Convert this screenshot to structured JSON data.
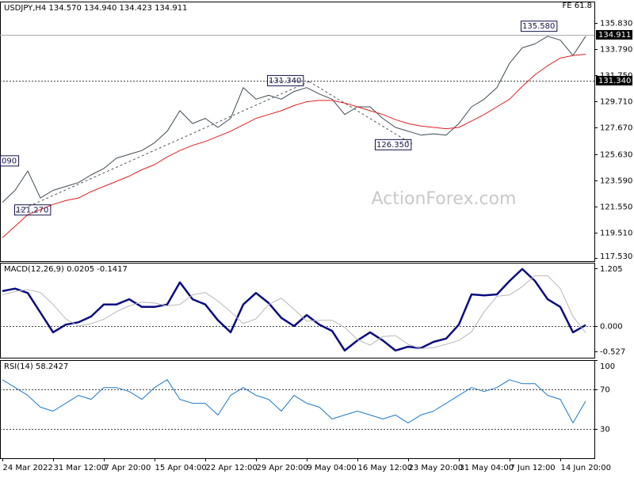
{
  "chart_data": [
    {
      "type": "line",
      "title": "USDJPY,H4  134.570 134.940 134.423 134.911",
      "note": "FE 61.8",
      "watermark": "ActionForex.com",
      "ylim": [
        117.28,
        137.5
      ],
      "yticks": [
        {
          "value": 135.83,
          "label": "135.830"
        },
        {
          "value": 133.79,
          "label": "133.790"
        },
        {
          "value": 131.75,
          "label": "131.750"
        },
        {
          "value": 129.71,
          "label": "129.710"
        },
        {
          "value": 127.67,
          "label": "127.670"
        },
        {
          "value": 125.63,
          "label": "125.630"
        },
        {
          "value": 123.59,
          "label": "123.590"
        },
        {
          "value": 121.55,
          "label": "121.550"
        },
        {
          "value": 119.51,
          "label": "119.510"
        },
        {
          "value": 117.53,
          "label": "117.530"
        }
      ],
      "series": [
        {
          "color": "#3c4a55",
          "values": [
            121.86,
            122.8,
            124.3,
            122.2,
            122.8,
            123.1,
            123.4,
            124.0,
            124.5,
            125.3,
            125.6,
            125.9,
            126.5,
            127.4,
            129.0,
            128.0,
            128.4,
            127.7,
            128.4,
            130.8,
            129.9,
            130.2,
            129.9,
            130.5,
            130.8,
            130.3,
            129.9,
            128.7,
            129.3,
            129.3,
            128.4,
            127.7,
            127.4,
            127.1,
            127.2,
            127.1,
            128.0,
            129.3,
            129.9,
            130.8,
            132.7,
            133.9,
            134.2,
            134.8,
            134.5,
            133.3,
            134.8
          ]
        },
        {
          "color": "#e02020",
          "values": [
            119.1,
            120.0,
            120.9,
            121.3,
            121.7,
            122.0,
            122.2,
            122.7,
            123.1,
            123.5,
            123.9,
            124.4,
            124.8,
            125.4,
            125.9,
            126.3,
            126.6,
            127.0,
            127.4,
            127.9,
            128.4,
            128.7,
            129.0,
            129.4,
            129.7,
            129.8,
            129.8,
            129.6,
            129.3,
            129.0,
            128.7,
            128.3,
            128.0,
            127.8,
            127.7,
            127.6,
            127.7,
            128.2,
            128.7,
            129.3,
            129.9,
            130.9,
            131.8,
            132.5,
            133.1,
            133.3,
            133.4
          ]
        }
      ],
      "hlines": [
        {
          "value": 131.34,
          "label": "131.340",
          "style": "dotted"
        },
        {
          "value": 134.911,
          "label": "134.911",
          "style": "solid"
        }
      ],
      "annotations": [
        {
          "value": 125.09,
          "label": "090"
        },
        {
          "value": 121.27,
          "label": "121.270"
        },
        {
          "value": 131.34,
          "label": "131.340"
        },
        {
          "value": 126.35,
          "label": "126.350"
        },
        {
          "value": 135.58,
          "label": "135.580"
        }
      ]
    },
    {
      "type": "line",
      "title": "MACD(12,26,9) 0.0205 -0.1417",
      "ylim": [
        -0.66,
        1.32
      ],
      "yticks": [
        1.205,
        {
          "value": 0,
          "label": "0.000"
        },
        -0.527
      ],
      "series": [
        {
          "color": "#0a0a80",
          "values": [
            0.73,
            0.78,
            0.69,
            0.28,
            -0.13,
            0.03,
            0.08,
            0.2,
            0.45,
            0.45,
            0.56,
            0.4,
            0.4,
            0.45,
            0.91,
            0.56,
            0.45,
            0.12,
            -0.13,
            0.45,
            0.69,
            0.48,
            0.17,
            0.0,
            0.23,
            0.03,
            -0.1,
            -0.51,
            -0.3,
            -0.13,
            -0.3,
            -0.51,
            -0.43,
            -0.46,
            -0.33,
            -0.26,
            0.03,
            0.66,
            0.64,
            0.66,
            0.94,
            1.19,
            0.94,
            0.56,
            0.4,
            -0.13,
            0.02
          ]
        },
        {
          "color": "#b8b8b8",
          "values": [
            0.65,
            0.72,
            0.76,
            0.7,
            0.45,
            0.15,
            0.0,
            0.05,
            0.14,
            0.3,
            0.42,
            0.5,
            0.48,
            0.42,
            0.45,
            0.65,
            0.7,
            0.52,
            0.3,
            0.05,
            0.15,
            0.45,
            0.58,
            0.35,
            0.1,
            0.12,
            0.12,
            -0.03,
            -0.28,
            -0.4,
            -0.22,
            -0.2,
            -0.38,
            -0.47,
            -0.45,
            -0.38,
            -0.3,
            -0.12,
            0.3,
            0.62,
            0.65,
            0.82,
            1.05,
            1.05,
            0.78,
            0.2,
            -0.14
          ]
        }
      ],
      "hlines": [
        {
          "value": 0,
          "style": "dotted"
        }
      ]
    },
    {
      "type": "line",
      "title": "RSI(14) 58.2427",
      "ylim": [
        0,
        100
      ],
      "yticks": [
        100,
        70,
        30
      ],
      "categories": [
        "24 Mar 2022",
        null,
        null,
        null,
        "31 Mar 12:00",
        null,
        null,
        null,
        "7 Apr 20:00",
        null,
        null,
        null,
        "15 Apr 04:00",
        null,
        null,
        null,
        "22 Apr 12:00",
        null,
        null,
        null,
        "29 Apr 20:00",
        null,
        null,
        null,
        "9 May 04:00",
        null,
        null,
        null,
        "16 May 12:00",
        null,
        null,
        null,
        "23 May 20:00",
        null,
        null,
        null,
        "31 May 04:00",
        null,
        null,
        null,
        "7 Jun 12:00",
        null,
        null,
        null,
        "14 Jun 20:00",
        null,
        null
      ],
      "series": [
        {
          "color": "#1e78c8",
          "values": [
            80,
            72,
            64,
            52,
            48,
            56,
            64,
            60,
            72,
            72,
            68,
            60,
            72,
            80,
            60,
            56,
            56,
            44,
            64,
            72,
            64,
            60,
            48,
            64,
            56,
            52,
            40,
            44,
            48,
            44,
            40,
            44,
            36,
            44,
            48,
            56,
            64,
            72,
            68,
            72,
            80,
            76,
            76,
            64,
            60,
            36,
            58.2
          ]
        }
      ],
      "hlines": [
        {
          "value": 70,
          "style": "dotted"
        },
        {
          "value": 30,
          "style": "dotted"
        }
      ]
    }
  ]
}
